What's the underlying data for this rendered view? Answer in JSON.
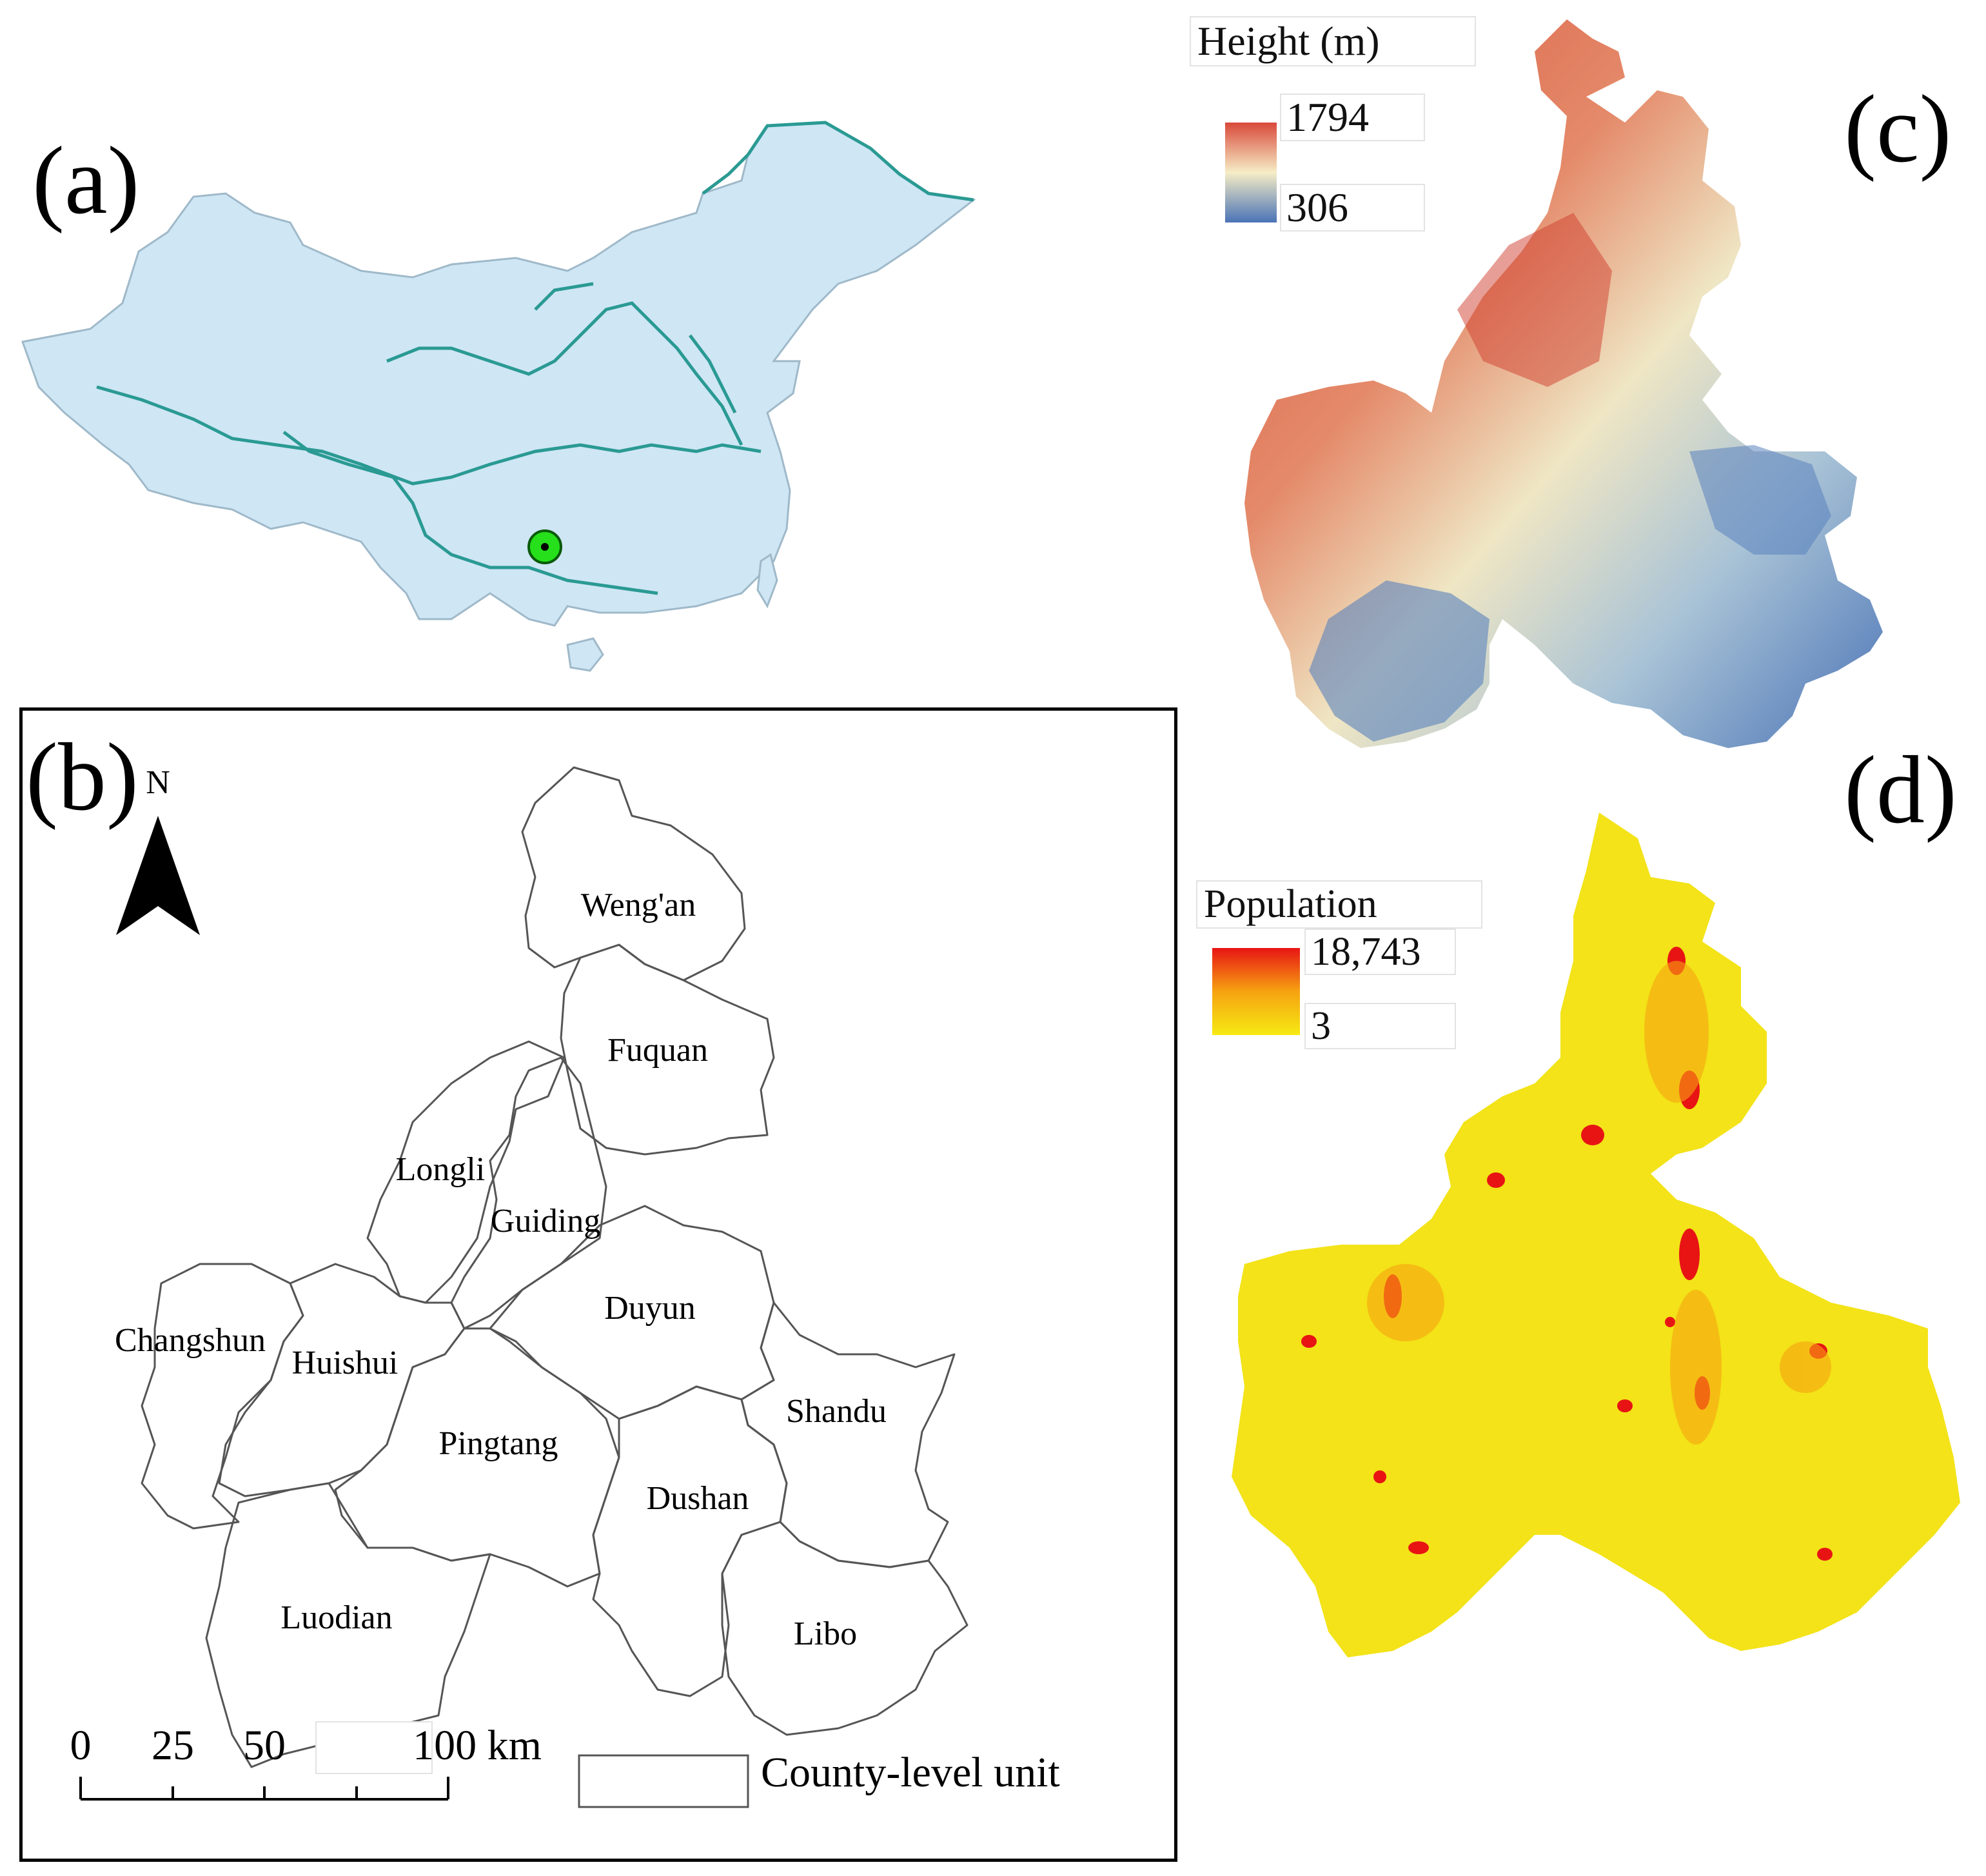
{
  "panels": {
    "a": {
      "label": "(a)"
    },
    "b": {
      "label": "(b)",
      "north": "N",
      "counties": [
        "Weng'an",
        "Fuquan",
        "Longli",
        "Guiding",
        "Duyun",
        "Changshun",
        "Huishui",
        "Pingtang",
        "Shandu",
        "Dushan",
        "Luodian",
        "Libo"
      ],
      "scale": {
        "ticks": [
          "0",
          "25",
          "50",
          "100 km"
        ]
      },
      "legend": "County-level unit"
    },
    "c": {
      "label": "(c)",
      "legend_title": "Height (m)",
      "max": "1794",
      "min": "306",
      "colors": {
        "high": "#d9493a",
        "mid": "#f6edc6",
        "low": "#4a73b6"
      }
    },
    "d": {
      "label": "(d)",
      "legend_title": "Population",
      "max": "18,743",
      "min": "3",
      "colors": {
        "high": "#e81414",
        "mid": "#f6a311",
        "low": "#f6ea12"
      }
    }
  },
  "colors": {
    "land": "#cfe6f5",
    "river": "#2a9a93",
    "marker": "#25e01a"
  }
}
